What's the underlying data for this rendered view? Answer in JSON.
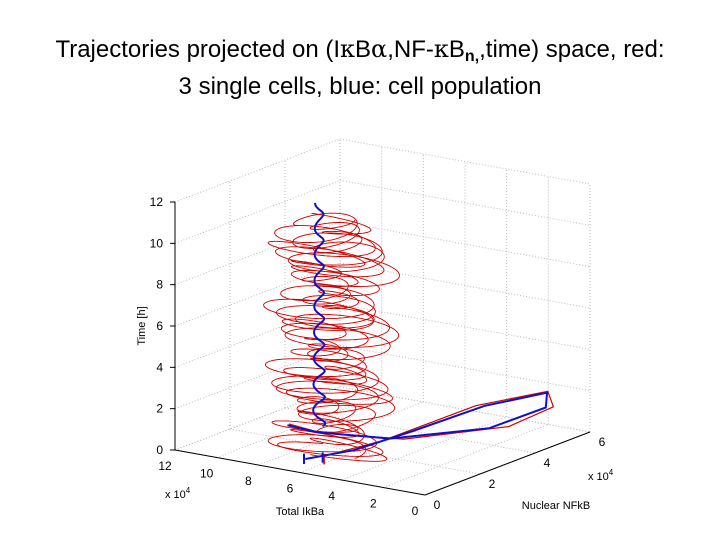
{
  "title": {
    "part1": "Trajectories projected on (I",
    "kappa1": "κ",
    "part2": "B",
    "alpha": "α",
    "part3": ",NF-",
    "kappa2": "κ",
    "part4": "B",
    "sub": "n,",
    "part5": ",time) space, red:",
    "line2": "3 single cells, blue: cell population"
  },
  "chart_data": {
    "type": "line",
    "projection": "3d",
    "axes": {
      "z": {
        "label": "Time [h]",
        "ticks": [
          "0",
          "2",
          "4",
          "6",
          "8",
          "10",
          "12"
        ],
        "lim": [
          0,
          12
        ]
      },
      "x": {
        "label": "Total IkBa",
        "ticks": [
          "12",
          "10",
          "8",
          "6",
          "4",
          "2",
          "0"
        ],
        "lim": [
          0,
          12
        ],
        "exponent": "x 10^4"
      },
      "y": {
        "label": "Nuclear NFkB",
        "ticks": [
          "0",
          "2",
          "4",
          "6"
        ],
        "lim": [
          0,
          6
        ],
        "exponent": "x 10^4"
      }
    },
    "grid": true,
    "series": [
      {
        "name": "3 single cells",
        "color": "#cc0000"
      },
      {
        "name": "cell population",
        "color": "#1010cc"
      }
    ]
  }
}
